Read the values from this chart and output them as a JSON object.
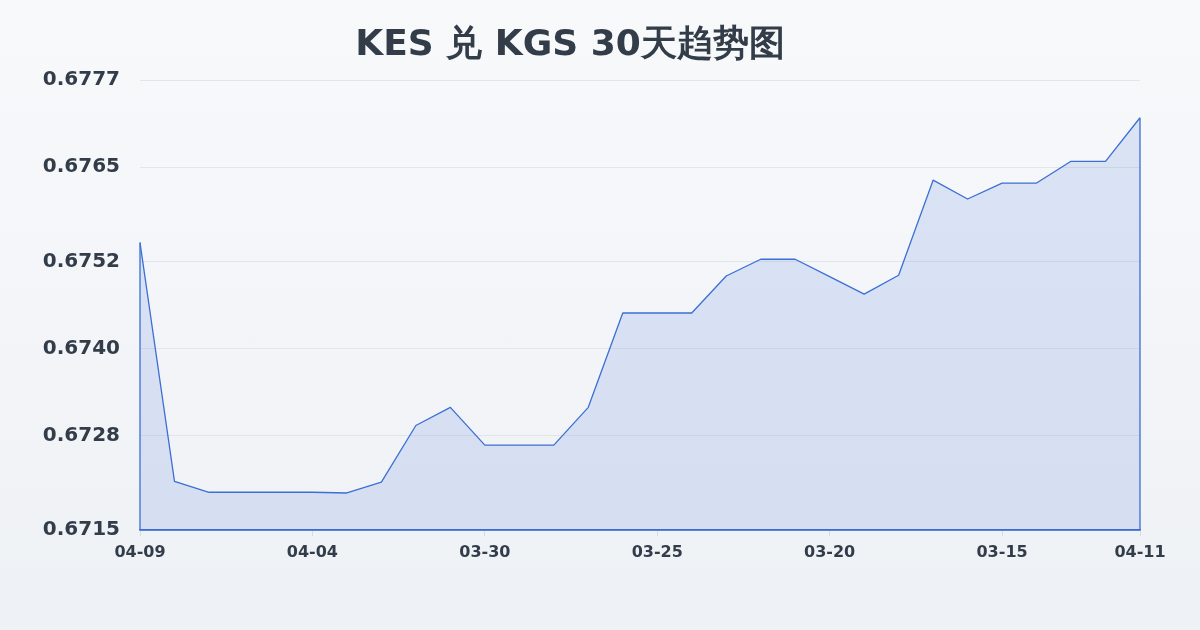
{
  "chart_data": {
    "type": "area",
    "title": "KES 兑 KGS 30天趋势图",
    "categories": [
      "04-09",
      null,
      null,
      null,
      null,
      "04-04",
      null,
      null,
      null,
      null,
      "03-30",
      null,
      null,
      null,
      null,
      "03-25",
      null,
      null,
      null,
      null,
      "03-20",
      null,
      null,
      null,
      null,
      "03-15",
      null,
      null,
      null,
      "04-11"
    ],
    "series": [
      {
        "color": "#3b6fd4",
        "values": [
          0.67546,
          0.67217,
          0.67202,
          0.67202,
          0.67202,
          0.67202,
          0.67201,
          0.67216,
          0.67294,
          0.67319,
          0.67267,
          0.67267,
          0.67267,
          0.67319,
          0.67449,
          0.67449,
          0.67449,
          0.675,
          0.67523,
          0.67523,
          0.67499,
          0.67475,
          0.67501,
          0.67632,
          0.67606,
          0.67628,
          0.67628,
          0.67658,
          0.67658,
          0.67718
        ]
      }
    ],
    "ylim": [
      0.6715,
      0.6777
    ],
    "yticks": [
      0.6715,
      0.6728,
      {
        "value": 0.674,
        "label": "0.6740"
      },
      0.6752,
      0.6765,
      0.6777
    ],
    "grid": "y",
    "marker": "none"
  }
}
